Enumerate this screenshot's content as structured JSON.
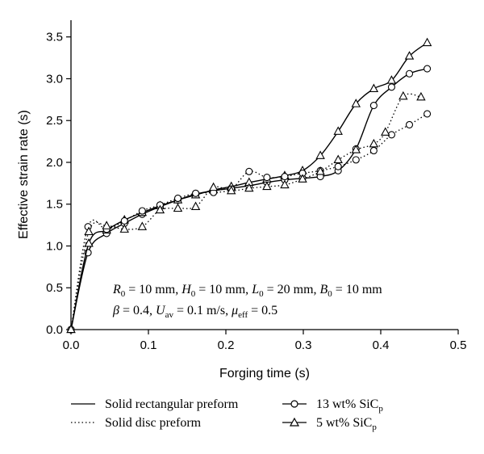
{
  "chart_data": {
    "type": "line",
    "title": "",
    "xlabel": "Forging time (s)",
    "ylabel": "Effective strain rate (s)",
    "xlim": [
      0,
      0.5
    ],
    "ylim": [
      0,
      3.7
    ],
    "xticks": [
      0,
      0.1,
      0.2,
      0.3,
      0.4,
      0.5
    ],
    "xtick_labels": [
      "0.0",
      "0.1",
      "0.2",
      "0.3",
      "0.4",
      "0.5"
    ],
    "yticks": [
      0,
      0.5,
      1.0,
      1.5,
      2.0,
      2.5,
      3.0,
      3.5
    ],
    "ytick_labels": [
      "0.0",
      "0.5",
      "1.0",
      "1.5",
      "2.0",
      "2.5",
      "3.0",
      "3.5"
    ],
    "grid": false,
    "annotation_line1": {
      "R0": "R",
      "R0_sub": "0",
      "R0_val": " = 10 mm, ",
      "H0": "H",
      "H0_sub": "0",
      "H0_val": " = 10 mm, ",
      "L0": "L",
      "L0_sub": "0",
      "L0_val": " = 20 mm, ",
      "B0": "B",
      "B0_sub": "0",
      "B0_val": " = 10 mm"
    },
    "annotation_line2": {
      "beta": "β",
      "beta_val": " = 0.4, ",
      "U": "U",
      "U_sub": "av",
      "U_val": " = 0.1 m/s, ",
      "mu": "μ",
      "mu_sub": "eff",
      "mu_val": " = 0.5"
    },
    "legend": {
      "placement": "bottom",
      "line_styles": [
        {
          "label": "Solid rectangular preform",
          "style": "solid"
        },
        {
          "label": "Solid disc preform",
          "style": "dotted"
        }
      ],
      "markers": [
        {
          "label_main": "13 wt% SiC",
          "label_sub": "p",
          "marker": "circle"
        },
        {
          "label_main": "5 wt% SiC",
          "label_sub": "p",
          "marker": "triangle"
        }
      ]
    },
    "series": [
      {
        "name": "Solid rectangular preform, 13 wt% SiCp",
        "style": "solid",
        "marker": "circle",
        "x": [
          0.0,
          0.022,
          0.046,
          0.069,
          0.092,
          0.115,
          0.138,
          0.161,
          0.184,
          0.207,
          0.23,
          0.253,
          0.276,
          0.299,
          0.322,
          0.345,
          0.368,
          0.391,
          0.414,
          0.437,
          0.46
        ],
        "y": [
          0.0,
          0.92,
          1.15,
          1.27,
          1.38,
          1.47,
          1.55,
          1.62,
          1.66,
          1.69,
          1.72,
          1.76,
          1.79,
          1.81,
          1.83,
          1.9,
          2.16,
          2.68,
          2.9,
          3.06,
          3.12
        ]
      },
      {
        "name": "Solid rectangular preform, 5 wt% SiCp",
        "style": "solid",
        "marker": "triangle",
        "x": [
          0.0,
          0.023,
          0.046,
          0.069,
          0.092,
          0.115,
          0.138,
          0.161,
          0.184,
          0.207,
          0.23,
          0.253,
          0.276,
          0.299,
          0.322,
          0.345,
          0.368,
          0.391,
          0.414,
          0.437,
          0.46
        ],
        "y": [
          0.0,
          1.03,
          1.19,
          1.31,
          1.4,
          1.48,
          1.55,
          1.61,
          1.67,
          1.71,
          1.76,
          1.8,
          1.84,
          1.9,
          2.08,
          2.37,
          2.7,
          2.88,
          2.98,
          3.27,
          3.43
        ]
      },
      {
        "name": "Solid disc preform, 13 wt% SiCp",
        "style": "dotted",
        "marker": "circle",
        "x": [
          0.0,
          0.022,
          0.046,
          0.069,
          0.092,
          0.115,
          0.138,
          0.161,
          0.184,
          0.207,
          0.23,
          0.253,
          0.276,
          0.299,
          0.322,
          0.345,
          0.368,
          0.391,
          0.414,
          0.437,
          0.46
        ],
        "y": [
          0.0,
          1.23,
          1.2,
          1.3,
          1.42,
          1.49,
          1.57,
          1.63,
          1.64,
          1.68,
          1.89,
          1.82,
          1.83,
          1.87,
          1.9,
          1.95,
          2.03,
          2.14,
          2.33,
          2.45,
          2.58
        ]
      },
      {
        "name": "Solid disc preform, 5 wt% SiCp",
        "style": "dotted",
        "marker": "triangle",
        "x": [
          0.0,
          0.023,
          0.046,
          0.069,
          0.092,
          0.115,
          0.138,
          0.161,
          0.184,
          0.207,
          0.23,
          0.253,
          0.276,
          0.299,
          0.322,
          0.345,
          0.368,
          0.391,
          0.406,
          0.429,
          0.452
        ],
        "y": [
          0.0,
          1.17,
          1.24,
          1.2,
          1.23,
          1.43,
          1.45,
          1.47,
          1.7,
          1.66,
          1.69,
          1.71,
          1.73,
          1.8,
          1.89,
          2.03,
          2.15,
          2.22,
          2.36,
          2.79,
          2.78
        ]
      }
    ]
  }
}
